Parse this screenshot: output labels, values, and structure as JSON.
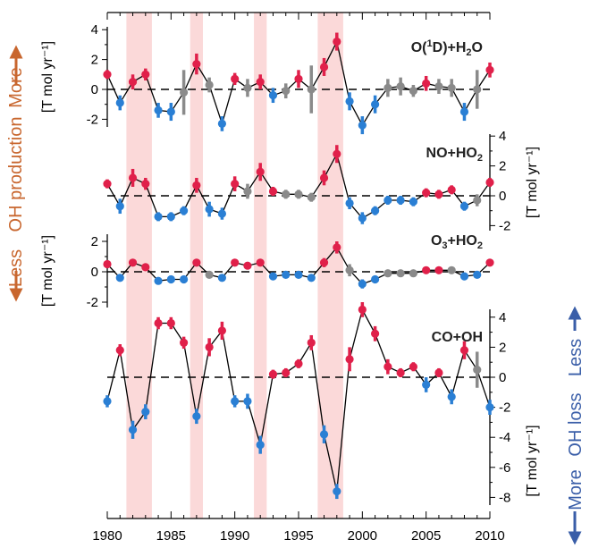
{
  "chart_data": {
    "type": "line",
    "x_years": [
      1980,
      1981,
      1982,
      1983,
      1984,
      1985,
      1986,
      1987,
      1988,
      1989,
      1990,
      1991,
      1992,
      1993,
      1994,
      1995,
      1996,
      1997,
      1998,
      1999,
      2000,
      2001,
      2002,
      2003,
      2004,
      2005,
      2006,
      2007,
      2008,
      2009,
      2010
    ],
    "x_ticks": [
      "1980",
      "1985",
      "1990",
      "1995",
      "2000",
      "2005",
      "2010"
    ],
    "x_tick_values": [
      1980,
      1985,
      1990,
      1995,
      2000,
      2005,
      2010
    ],
    "x_range": [
      1980,
      2010
    ],
    "highlight_spans": [
      [
        1981.5,
        1983.5
      ],
      [
        1986.5,
        1987.5
      ],
      [
        1991.5,
        1992.5
      ],
      [
        1996.5,
        1998.5
      ]
    ],
    "colors": {
      "positive": "#e0204a",
      "negative": "#2a7fd4",
      "insignificant": "#8a8a8a",
      "highlight": "#fbd9d9",
      "line": "#000000"
    },
    "panels": [
      {
        "name": "O(¹D)+H₂O",
        "label_parts": [
          "O(",
          "1",
          "D)+H",
          "2",
          "O"
        ],
        "axis_side": "left",
        "unit": "[T mol yr⁻¹]",
        "yticks": [
          "4",
          "2",
          "0",
          "-2"
        ],
        "ytick_values": [
          4,
          2,
          0,
          -2
        ],
        "values": [
          1.0,
          -0.9,
          0.5,
          1.0,
          -1.4,
          -1.5,
          -0.2,
          1.7,
          0.3,
          -2.3,
          0.7,
          0.1,
          0.5,
          -0.4,
          -0.1,
          0.7,
          0.0,
          1.5,
          3.2,
          -0.8,
          -2.4,
          -1.0,
          0.1,
          0.2,
          -0.1,
          0.4,
          0.2,
          0.1,
          -1.5,
          0.0,
          1.3
        ],
        "errors": [
          0.3,
          0.5,
          0.5,
          0.4,
          0.5,
          0.6,
          1.5,
          0.7,
          0.5,
          0.5,
          0.4,
          0.6,
          0.5,
          0.5,
          0.5,
          0.6,
          1.6,
          0.6,
          0.6,
          0.6,
          0.6,
          0.6,
          0.6,
          0.6,
          0.4,
          0.5,
          0.5,
          0.6,
          0.6,
          1.3,
          0.5
        ],
        "colors": [
          "positive",
          "negative",
          "positive",
          "positive",
          "negative",
          "negative",
          "insignificant",
          "positive",
          "insignificant",
          "negative",
          "positive",
          "insignificant",
          "positive",
          "negative",
          "insignificant",
          "positive",
          "insignificant",
          "positive",
          "positive",
          "negative",
          "negative",
          "negative",
          "insignificant",
          "insignificant",
          "insignificant",
          "positive",
          "insignificant",
          "insignificant",
          "negative",
          "insignificant",
          "positive"
        ]
      },
      {
        "name": "NO+HO₂",
        "label_parts": [
          "NO+HO",
          "2"
        ],
        "axis_side": "right",
        "unit": "[T mol yr⁻¹]",
        "yticks": [
          "4",
          "2",
          "0",
          "-2"
        ],
        "ytick_values": [
          4,
          2,
          0,
          -2
        ],
        "values": [
          0.8,
          -0.7,
          1.2,
          0.8,
          -1.4,
          -1.4,
          -1.0,
          0.7,
          -0.9,
          -1.2,
          0.8,
          0.3,
          1.6,
          0.3,
          0.1,
          0.1,
          -0.1,
          1.2,
          2.8,
          -0.5,
          -1.5,
          -1.0,
          -0.3,
          -0.3,
          -0.4,
          0.2,
          0.1,
          0.4,
          -0.7,
          -0.3,
          0.9
        ],
        "errors": [
          0.3,
          0.5,
          0.6,
          0.4,
          0.3,
          0.3,
          0.3,
          0.5,
          0.5,
          0.4,
          0.5,
          0.5,
          0.6,
          0.3,
          0.3,
          0.3,
          0.3,
          0.5,
          0.6,
          0.4,
          0.4,
          0.3,
          0.3,
          0.3,
          0.3,
          0.3,
          0.3,
          0.3,
          0.3,
          0.4,
          0.3
        ],
        "colors": [
          "positive",
          "negative",
          "positive",
          "positive",
          "negative",
          "negative",
          "negative",
          "positive",
          "negative",
          "negative",
          "positive",
          "insignificant",
          "positive",
          "positive",
          "insignificant",
          "insignificant",
          "insignificant",
          "positive",
          "positive",
          "negative",
          "negative",
          "negative",
          "negative",
          "negative",
          "negative",
          "positive",
          "positive",
          "positive",
          "negative",
          "insignificant",
          "positive"
        ]
      },
      {
        "name": "O₃+HO₂",
        "label_parts": [
          "O",
          "3",
          "+HO",
          "2"
        ],
        "axis_side": "left",
        "unit": "[T mol yr⁻¹]",
        "yticks": [
          "2",
          "0",
          "-2"
        ],
        "ytick_values": [
          2,
          0,
          -2
        ],
        "values": [
          0.5,
          -0.4,
          0.6,
          0.3,
          -0.6,
          -0.5,
          -0.5,
          0.6,
          -0.2,
          -0.4,
          0.6,
          0.4,
          0.6,
          -0.3,
          -0.2,
          -0.2,
          -0.4,
          0.6,
          1.6,
          0.1,
          -0.8,
          -0.5,
          -0.1,
          -0.1,
          -0.1,
          0.1,
          0.1,
          0.1,
          -0.3,
          -0.2,
          0.6
        ],
        "errors": [
          0.2,
          0.2,
          0.2,
          0.2,
          0.2,
          0.2,
          0.2,
          0.2,
          0.2,
          0.2,
          0.2,
          0.2,
          0.2,
          0.2,
          0.2,
          0.2,
          0.2,
          0.3,
          0.4,
          0.4,
          0.3,
          0.2,
          0.2,
          0.2,
          0.2,
          0.2,
          0.2,
          0.2,
          0.2,
          0.2,
          0.2
        ],
        "colors": [
          "positive",
          "negative",
          "positive",
          "positive",
          "negative",
          "negative",
          "negative",
          "positive",
          "insignificant",
          "negative",
          "positive",
          "positive",
          "positive",
          "negative",
          "negative",
          "negative",
          "negative",
          "positive",
          "positive",
          "insignificant",
          "negative",
          "negative",
          "insignificant",
          "insignificant",
          "insignificant",
          "positive",
          "positive",
          "insignificant",
          "negative",
          "negative",
          "positive"
        ]
      },
      {
        "name": "CO+OH",
        "label_parts": [
          "CO+OH"
        ],
        "axis_side": "right",
        "unit": "[T mol yr⁻¹]",
        "yticks": [
          "4",
          "2",
          "0",
          "-2",
          "-4",
          "-6",
          "-8"
        ],
        "ytick_values": [
          4,
          2,
          0,
          -2,
          -4,
          -6,
          -8
        ],
        "values": [
          -1.6,
          1.8,
          -3.5,
          -2.3,
          3.6,
          3.6,
          2.3,
          -2.6,
          2.0,
          3.1,
          -1.6,
          -1.6,
          -4.5,
          0.2,
          0.3,
          0.9,
          2.3,
          -3.8,
          -7.6,
          1.2,
          4.5,
          2.9,
          0.7,
          0.3,
          0.7,
          -0.5,
          0.3,
          -1.3,
          1.8,
          0.5,
          -2.0
        ],
        "errors": [
          0.4,
          0.4,
          0.6,
          0.5,
          0.4,
          0.4,
          0.4,
          0.5,
          0.6,
          0.6,
          0.4,
          0.5,
          0.6,
          0.3,
          0.3,
          0.3,
          0.5,
          0.6,
          0.5,
          0.8,
          0.5,
          0.5,
          0.5,
          0.3,
          0.3,
          0.5,
          0.3,
          0.5,
          0.6,
          1.2,
          0.5
        ],
        "colors": [
          "negative",
          "positive",
          "negative",
          "negative",
          "positive",
          "positive",
          "positive",
          "negative",
          "positive",
          "positive",
          "negative",
          "negative",
          "negative",
          "positive",
          "positive",
          "positive",
          "positive",
          "negative",
          "negative",
          "positive",
          "positive",
          "positive",
          "positive",
          "positive",
          "positive",
          "negative",
          "positive",
          "negative",
          "positive",
          "insignificant",
          "negative"
        ]
      }
    ]
  },
  "side_labels": {
    "more_top": "More",
    "oh_production": "OH production",
    "less_top": "Less",
    "less_right": "Less",
    "oh_loss": "OH loss",
    "more_right": "More"
  }
}
